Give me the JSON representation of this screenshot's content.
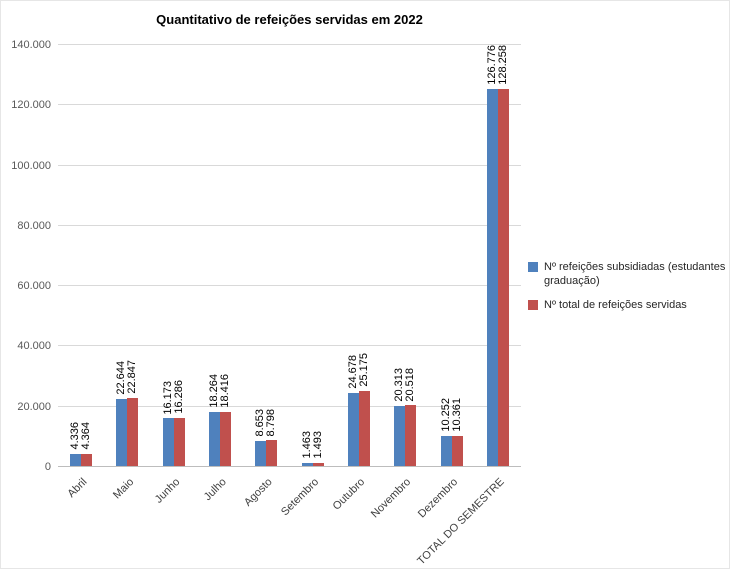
{
  "chart_data": {
    "type": "bar",
    "title": "Quantitativo de refeições servidas em 2022",
    "categories": [
      "Abril",
      "Maio",
      "Junho",
      "Julho",
      "Agosto",
      "Setembro",
      "Outubro",
      "Novembro",
      "Dezembro",
      "TOTAL DO SEMESTRE"
    ],
    "series": [
      {
        "name": "Nº refeições subsidiadas (estudantes graduação)",
        "color": "#4f81bd",
        "values": [
          4336,
          22644,
          16173,
          18264,
          8653,
          1463,
          24678,
          20313,
          10252,
          126776
        ],
        "labels": [
          "4.336",
          "22.644",
          "16.173",
          "18.264",
          "8.653",
          "1.463",
          "24.678",
          "20.313",
          "10.252",
          "126.776"
        ]
      },
      {
        "name": "Nº total de refeições servidas",
        "color": "#c0504d",
        "values": [
          4364,
          22847,
          16286,
          18416,
          8798,
          1493,
          25175,
          20518,
          10361,
          128258
        ],
        "labels": [
          "4.364",
          "22.847",
          "16.286",
          "18.416",
          "8.798",
          "1.493",
          "25.175",
          "20.518",
          "10.361",
          "128.258"
        ]
      }
    ],
    "ylim": [
      0,
      140000
    ],
    "ytick_step": 20000,
    "ytick_labels": [
      "0",
      "20.000",
      "40.000",
      "60.000",
      "80.000",
      "100.000",
      "120.000",
      "140.000"
    ],
    "grid": true,
    "legend_position": "right"
  }
}
